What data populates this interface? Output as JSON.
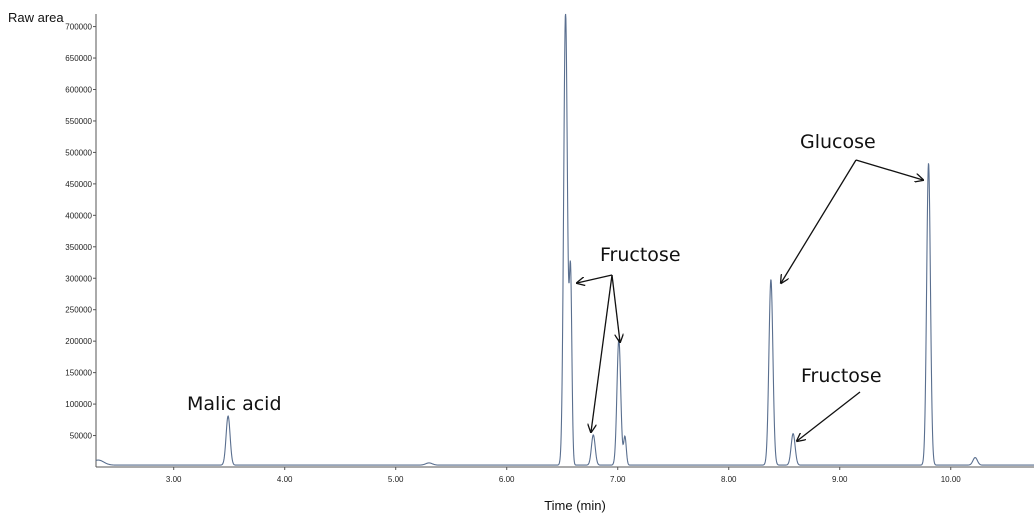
{
  "chart_data": {
    "type": "line",
    "title": "",
    "xlabel": "Time (min)",
    "ylabel": "Raw area",
    "xlim": [
      2.3,
      10.75
    ],
    "ylim": [
      0,
      720000
    ],
    "x_ticks": [
      3.0,
      4.0,
      5.0,
      6.0,
      7.0,
      8.0,
      9.0,
      10.0
    ],
    "x_tick_labels": [
      "3.00",
      "4.00",
      "5.00",
      "6.00",
      "7.00",
      "8.00",
      "9.00",
      "10.00"
    ],
    "y_ticks": [
      50000,
      100000,
      150000,
      200000,
      250000,
      300000,
      350000,
      400000,
      450000,
      500000,
      550000,
      600000,
      650000,
      700000
    ],
    "y_tick_labels": [
      "50000",
      "100000",
      "150000",
      "200000",
      "250000",
      "300000",
      "350000",
      "400000",
      "450000",
      "500000",
      "550000",
      "600000",
      "650000",
      "700000"
    ],
    "line_color": "#5a6f8f",
    "baseline": 3000,
    "peaks": [
      {
        "t": 2.32,
        "h": 8000,
        "w": 0.05
      },
      {
        "t": 3.49,
        "h": 78000,
        "w": 0.018
      },
      {
        "t": 5.3,
        "h": 3500,
        "w": 0.03
      },
      {
        "t": 6.53,
        "h": 720000,
        "w": 0.017
      },
      {
        "t": 6.575,
        "h": 300000,
        "w": 0.012
      },
      {
        "t": 6.78,
        "h": 48000,
        "w": 0.017
      },
      {
        "t": 7.01,
        "h": 200000,
        "w": 0.017
      },
      {
        "t": 7.065,
        "h": 45000,
        "w": 0.012
      },
      {
        "t": 8.38,
        "h": 295000,
        "w": 0.018
      },
      {
        "t": 8.58,
        "h": 50000,
        "w": 0.018
      },
      {
        "t": 9.8,
        "h": 480000,
        "w": 0.017
      },
      {
        "t": 10.22,
        "h": 12000,
        "w": 0.02
      }
    ],
    "annotations": [
      {
        "text": "Malic acid",
        "pointers": []
      },
      {
        "text": "Fructose",
        "pointers": [
          6.56,
          6.76,
          7.0
        ]
      },
      {
        "text": "Glucose",
        "pointers": [
          8.4,
          9.78
        ]
      },
      {
        "text": "Fructose",
        "pointers": [
          8.59
        ]
      }
    ],
    "grid": false,
    "legend": "none"
  }
}
